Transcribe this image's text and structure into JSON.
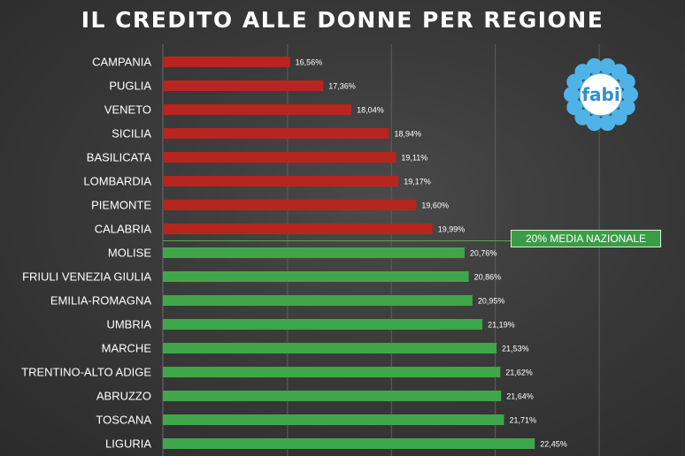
{
  "title": "IL CREDITO ALLE DONNE PER REGIONE",
  "logo_text": "fabi",
  "colors": {
    "below_average": "#b7251f",
    "above_average": "#3fa74a",
    "average_line": "#5ea64a",
    "logo_petal": "#4fb3e8"
  },
  "average": {
    "value": 20,
    "label": "20% MEDIA NAZIONALE"
  },
  "chart_data": {
    "type": "bar",
    "orientation": "horizontal",
    "title": "IL CREDITO ALLE DONNE PER REGIONE",
    "categories": [
      "CAMPANIA",
      "PUGLIA",
      "VENETO",
      "SICILIA",
      "BASILICATA",
      "LOMBARDIA",
      "PIEMONTE",
      "CALABRIA",
      "MOLISE",
      "FRIULI VENEZIA GIULIA",
      "EMILIA-ROMAGNA",
      "UMBRIA",
      "MARCHE",
      "TRENTINO-ALTO ADIGE",
      "ABRUZZO",
      "TOSCANA",
      "LIGURIA"
    ],
    "values": [
      16.56,
      17.36,
      18.04,
      18.94,
      19.11,
      19.17,
      19.6,
      19.99,
      20.76,
      20.86,
      20.95,
      21.19,
      21.53,
      21.62,
      21.64,
      21.71,
      22.45
    ],
    "value_labels": [
      "16,56%",
      "17,36%",
      "18,04%",
      "18,94%",
      "19,11%",
      "19,17%",
      "19,60%",
      "19,99%",
      "20,76%",
      "20,86%",
      "20,95%",
      "21,19%",
      "21,53%",
      "21,62%",
      "21,64%",
      "21,71%",
      "22,45%"
    ],
    "xlim": [
      13.5,
      25
    ],
    "grid": true,
    "legend": "none"
  }
}
